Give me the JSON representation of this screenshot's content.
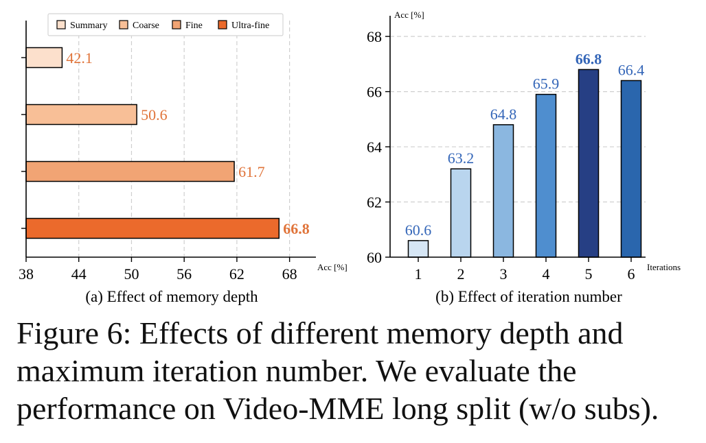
{
  "chart_data": [
    {
      "type": "bar",
      "orientation": "horizontal",
      "title": "(a) Effect of memory depth",
      "xlabel": "Acc [%]",
      "xlim": [
        38,
        71
      ],
      "xticks": [
        "38",
        "44",
        "50",
        "56",
        "62",
        "68"
      ],
      "categories": [
        "Summary",
        "Coarse",
        "Fine",
        "Ultra-fine"
      ],
      "values": [
        42.1,
        50.6,
        61.7,
        66.8
      ],
      "value_labels": [
        "42.1",
        "50.6",
        "61.7",
        "66.8"
      ],
      "highlight": "Ultra-fine",
      "colors": [
        "#fce0cc",
        "#f8bf97",
        "#f1a474",
        "#eb6a2c"
      ],
      "label_color": "#e0743a",
      "legend": [
        "Summary",
        "Coarse",
        "Fine",
        "Ultra-fine"
      ],
      "grid": "vertical dashed"
    },
    {
      "type": "bar",
      "title": "(b) Effect of iteration number",
      "xlabel": "Iterations",
      "ylabel": "Acc [%]",
      "ylim": [
        60,
        68.5
      ],
      "yticks": [
        "60",
        "62",
        "64",
        "66",
        "68"
      ],
      "categories": [
        "1",
        "2",
        "3",
        "4",
        "5",
        "6"
      ],
      "values": [
        60.6,
        63.2,
        64.8,
        65.9,
        66.8,
        66.4
      ],
      "value_labels": [
        "60.6",
        "63.2",
        "64.8",
        "65.9",
        "66.8",
        "66.4"
      ],
      "highlight": "5",
      "colors": [
        "#d6e6f5",
        "#b9d5ee",
        "#8bb7e0",
        "#4f8ecf",
        "#263f84",
        "#2a66ad"
      ],
      "label_color": "#3466b8",
      "grid": "horizontal dashed"
    }
  ],
  "caption": "Figure 6: Effects of different memory depth and maximum iteration number. We evaluate the performance on Video-MME long split (w/o subs)."
}
